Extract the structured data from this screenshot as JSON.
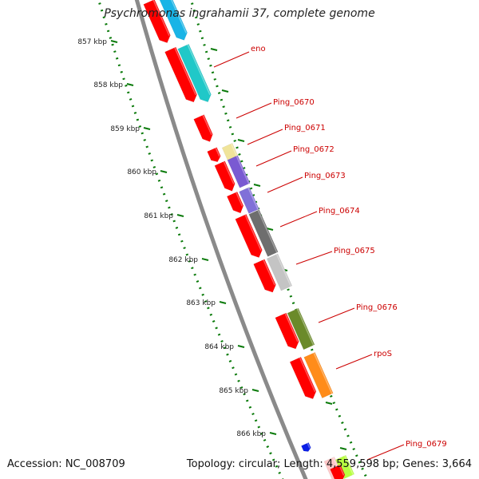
{
  "header": {
    "title": "Psychromonas ingrahamii 37, complete genome"
  },
  "footer": {
    "accession": "Accession: NC_008709",
    "summary": "Topology: circular; Length: 4,559,598 bp; Genes: 3,664"
  },
  "colors": {
    "backbone": "#8a8a8a",
    "tick": "#0a7a0a",
    "label": "#cc0000",
    "cds_forward_reverse": "#ff0000"
  },
  "ruler": [
    {
      "label": "857 kbp"
    },
    {
      "label": "858 kbp"
    },
    {
      "label": "859 kbp"
    },
    {
      "label": "860 kbp"
    },
    {
      "label": "861 kbp"
    },
    {
      "label": "862 kbp"
    },
    {
      "label": "863 kbp"
    },
    {
      "label": "864 kbp"
    },
    {
      "label": "865 kbp"
    },
    {
      "label": "866 kbp"
    }
  ],
  "gene_labels": [
    {
      "name": "eno"
    },
    {
      "name": "Ping_0670"
    },
    {
      "name": "Ping_0671"
    },
    {
      "name": "Ping_0672"
    },
    {
      "name": "Ping_0673"
    },
    {
      "name": "Ping_0674"
    },
    {
      "name": "Ping_0675"
    },
    {
      "name": "Ping_0676"
    },
    {
      "name": "rpoS"
    },
    {
      "name": "Ping_0679"
    }
  ],
  "feature_colors": {
    "cyan_a": "#19b4e6",
    "cyan_b": "#20c8c8",
    "pale_yellow": "#f0e49a",
    "purple_a": "#7a5ad2",
    "purple_b": "#8070d8",
    "dark_gray": "#6e6e6e",
    "light_gray": "#c4c4c4",
    "olive": "#6b8a2a",
    "orange": "#ff8c1a",
    "blue": "#0a1ee6",
    "lime": "#b8ff40",
    "pink": "#ffc8c8"
  }
}
